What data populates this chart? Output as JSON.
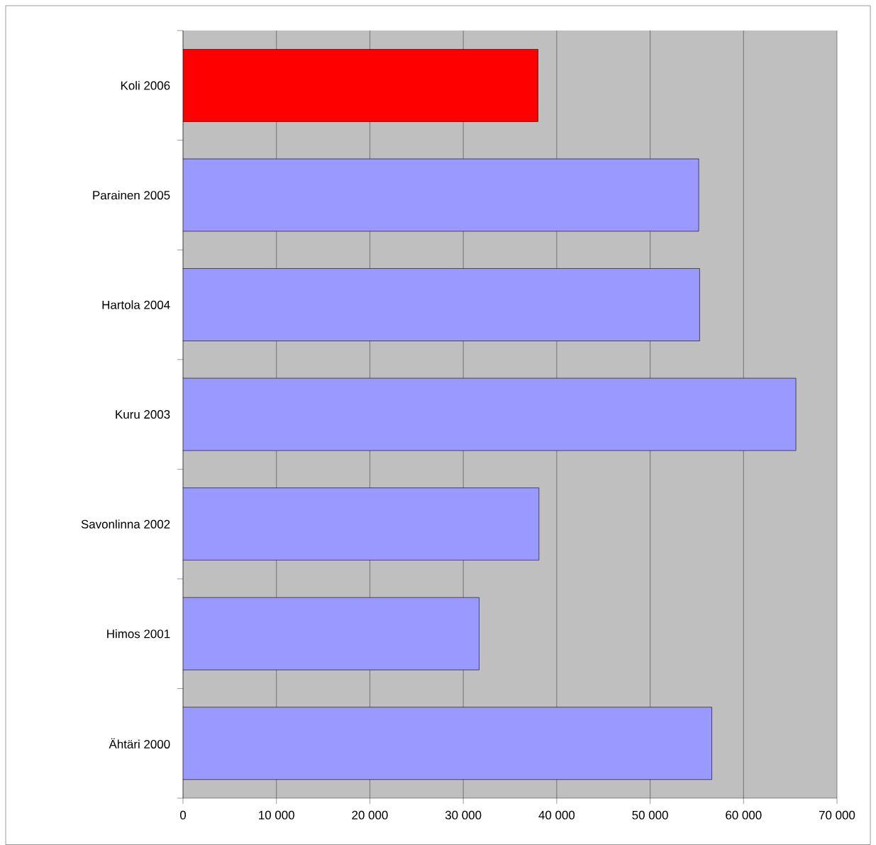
{
  "chart_data": {
    "type": "bar",
    "orientation": "horizontal",
    "categories": [
      "Koli 2006",
      "Parainen 2005",
      "Hartola 2004",
      "Kuru 2003",
      "Savonlinna 2002",
      "Himos 2001",
      "Ähtäri 2000"
    ],
    "values": [
      38000,
      55200,
      55300,
      65600,
      38100,
      31700,
      56600
    ],
    "colors": [
      "#ff0000",
      "#9999ff",
      "#9999ff",
      "#9999ff",
      "#9999ff",
      "#9999ff",
      "#9999ff"
    ],
    "xlim": [
      0,
      70000
    ],
    "xticks": [
      0,
      {
        "value": 10000,
        "label": "10 000"
      },
      {
        "value": 20000,
        "label": "20 000"
      },
      {
        "value": 30000,
        "label": "30 000"
      },
      {
        "value": 40000,
        "label": "40 000"
      },
      {
        "value": 50000,
        "label": "50 000"
      },
      {
        "value": 60000,
        "label": "60 000"
      },
      {
        "value": 70000,
        "label": "70 000"
      }
    ],
    "grid": "x",
    "legend": false
  }
}
